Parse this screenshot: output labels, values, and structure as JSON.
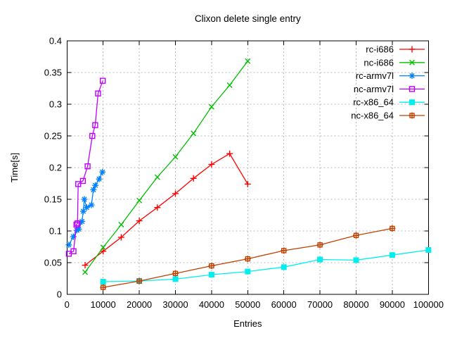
{
  "window": {
    "background": "#ffffff",
    "foreground": "#000000",
    "grid_color": "#b9b9b9"
  },
  "chart_data": {
    "type": "line",
    "title": "Clixon delete single entry",
    "xlabel": "Entries",
    "ylabel": "Time[s]",
    "xlim": [
      0,
      100000
    ],
    "ylim": [
      0,
      0.4
    ],
    "grid": true,
    "legend_position": "top-right-inside",
    "xticks": [
      {
        "value": 0,
        "label": "0"
      },
      {
        "value": 10000,
        "label": "10000"
      },
      {
        "value": 20000,
        "label": "20000"
      },
      {
        "value": 30000,
        "label": "30000"
      },
      {
        "value": 40000,
        "label": "40000"
      },
      {
        "value": 50000,
        "label": "50000"
      },
      {
        "value": 60000,
        "label": "60000"
      },
      {
        "value": 70000,
        "label": "70000"
      },
      {
        "value": 80000,
        "label": "80000"
      },
      {
        "value": 90000,
        "label": "90000"
      },
      {
        "value": 100000,
        "label": "100000"
      }
    ],
    "yticks": [
      {
        "value": 0,
        "label": "0"
      },
      {
        "value": 0.05,
        "label": "0.05"
      },
      {
        "value": 0.1,
        "label": "0.1"
      },
      {
        "value": 0.15,
        "label": "0.15"
      },
      {
        "value": 0.2,
        "label": "0.2"
      },
      {
        "value": 0.25,
        "label": "0.25"
      },
      {
        "value": 0.3,
        "label": "0.3"
      },
      {
        "value": 0.35,
        "label": "0.35"
      },
      {
        "value": 0.4,
        "label": "0.4"
      }
    ],
    "series": [
      {
        "name": "rc-i686",
        "color": "#ff0000",
        "marker": "plus",
        "x": [
          5000,
          10000,
          15000,
          20000,
          25000,
          30000,
          35000,
          40000,
          45000,
          50000
        ],
        "y": [
          0.046,
          0.068,
          0.09,
          0.116,
          0.137,
          0.159,
          0.183,
          0.205,
          0.222,
          0.174
        ]
      },
      {
        "name": "nc-i686",
        "color": "#00c000",
        "marker": "cross",
        "x": [
          5000,
          10000,
          15000,
          20000,
          25000,
          30000,
          35000,
          40000,
          45000,
          50000
        ],
        "y": [
          0.035,
          0.074,
          0.11,
          0.148,
          0.185,
          0.217,
          0.254,
          0.296,
          0.33,
          0.368
        ]
      },
      {
        "name": "rc-armv7l",
        "color": "#0080ff",
        "marker": "asterisk",
        "x": [
          500,
          1750,
          2700,
          3250,
          4150,
          4500,
          4800,
          5450,
          6750,
          7300,
          7850,
          8900,
          9800
        ],
        "y": [
          0.078,
          0.091,
          0.101,
          0.103,
          0.115,
          0.131,
          0.15,
          0.137,
          0.141,
          0.165,
          0.172,
          0.182,
          0.193
        ]
      },
      {
        "name": "nc-armv7l",
        "color": "#c000ff",
        "marker": "open-square",
        "x": [
          500,
          1800,
          2600,
          2900,
          3100,
          4400,
          5700,
          7000,
          7800,
          8600,
          9900
        ],
        "y": [
          0.064,
          0.068,
          0.11,
          0.112,
          0.174,
          0.179,
          0.202,
          0.25,
          0.267,
          0.317,
          0.337
        ]
      },
      {
        "name": "rc-x86_64",
        "color": "#00eeee",
        "marker": "filled-square",
        "x": [
          10000,
          20000,
          30000,
          40000,
          50000,
          60000,
          70000,
          80000,
          90000,
          100000
        ],
        "y": [
          0.02,
          0.021,
          0.024,
          0.031,
          0.036,
          0.043,
          0.055,
          0.054,
          0.062,
          0.07
        ]
      },
      {
        "name": "nc-x86_64",
        "color": "#c04000",
        "marker": "boxplus",
        "x": [
          10000,
          20000,
          30000,
          40000,
          50000,
          60000,
          70000,
          80000,
          90000
        ],
        "y": [
          0.011,
          0.021,
          0.033,
          0.045,
          0.056,
          0.069,
          0.078,
          0.093,
          0.104
        ]
      }
    ]
  }
}
